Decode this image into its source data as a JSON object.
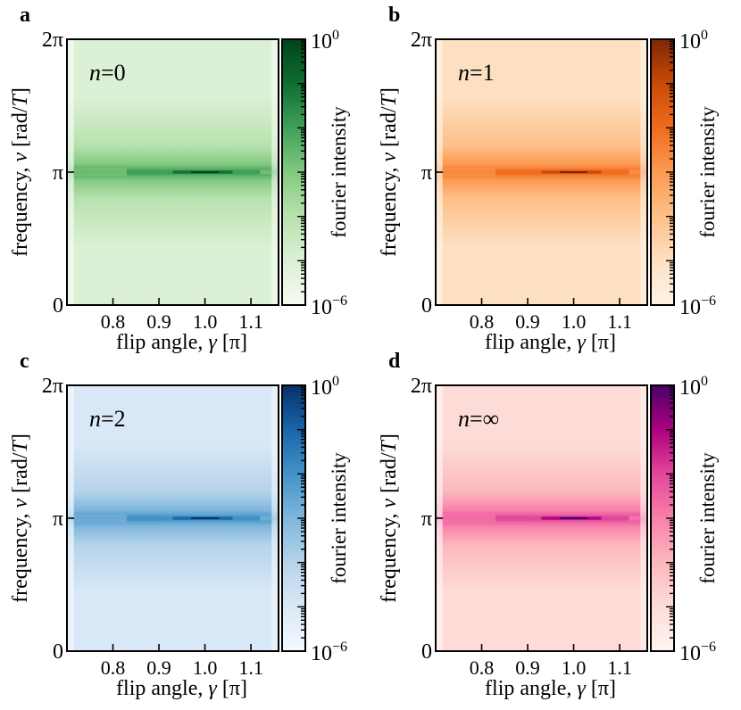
{
  "panels": [
    {
      "letter": "a",
      "annotation": "n=0",
      "n_label": "n",
      "n_value": "0",
      "colormap": [
        "#f6fbf3",
        "#dcf0d5",
        "#b7e2ae",
        "#83c97f",
        "#3fa05a",
        "#0f6e31",
        "#00441b"
      ]
    },
    {
      "letter": "b",
      "annotation": "n=1",
      "n_label": "n",
      "n_value": "1",
      "colormap": [
        "#fff3e6",
        "#fde0c2",
        "#fdc08a",
        "#fb9a52",
        "#ef6c1e",
        "#c94a07",
        "#7f2704"
      ]
    },
    {
      "letter": "c",
      "annotation": "n=2",
      "n_label": "n",
      "n_value": "2",
      "colormap": [
        "#f4f9fe",
        "#d9e8f6",
        "#b5d3ea",
        "#7fb6dc",
        "#4392c6",
        "#1965aa",
        "#08306b"
      ]
    },
    {
      "letter": "d",
      "annotation": "n=∞",
      "n_label": "n",
      "n_value": "∞",
      "colormap": [
        "#fff4f1",
        "#fddcd8",
        "#fbb8bd",
        "#f881aa",
        "#e2469c",
        "#ac017e",
        "#49006a"
      ]
    }
  ],
  "axes": {
    "xlabel": "flip angle, γ [π]",
    "xlabel_parts": {
      "main": "flip angle, ",
      "symbol": "γ",
      "unit": " [π]"
    },
    "ylabel": "frequency, ν [rad/T]",
    "ylabel_parts": {
      "main": "frequency, ",
      "symbol": "ν",
      "unit_open": " [rad/",
      "unit_sym": "T",
      "unit_close": "]"
    },
    "xticks": [
      "0.8",
      "0.9",
      "1.0",
      "1.1"
    ],
    "yticks": [
      "0",
      "π",
      "2π"
    ],
    "colorbar_label": "fourier intensity",
    "colorbar_top": {
      "base": "10",
      "exp": "0"
    },
    "colorbar_bottom": {
      "base": "10",
      "exp": "−6"
    }
  },
  "chart_data": [
    {
      "panel": "a",
      "type": "heatmap",
      "title": "",
      "n": "0",
      "xlabel": "flip angle, γ [π]",
      "ylabel": "frequency, ν [rad/T]",
      "xlim": [
        0.7,
        1.16
      ],
      "ylim": [
        0,
        6.2832
      ],
      "x_ticks": [
        0.8,
        0.9,
        1.0,
        1.1
      ],
      "y_ticks": [
        "0",
        "π",
        "2π"
      ],
      "colorbar": {
        "label": "fourier intensity",
        "scale": "log",
        "range": [
          1e-06,
          1
        ]
      },
      "peak": {
        "frequency": "π",
        "x_range": [
          0.7,
          1.14
        ],
        "max_at": 1.0,
        "max_intensity": 1.0
      },
      "background_intensity": 1e-05
    },
    {
      "panel": "b",
      "type": "heatmap",
      "title": "",
      "n": "1",
      "xlabel": "flip angle, γ [π]",
      "ylabel": "frequency, ν [rad/T]",
      "xlim": [
        0.7,
        1.16
      ],
      "ylim": [
        0,
        6.2832
      ],
      "x_ticks": [
        0.8,
        0.9,
        1.0,
        1.1
      ],
      "y_ticks": [
        "0",
        "π",
        "2π"
      ],
      "colorbar": {
        "label": "fourier intensity",
        "scale": "log",
        "range": [
          1e-06,
          1
        ]
      },
      "peak": {
        "frequency": "π",
        "x_range": [
          0.7,
          1.14
        ],
        "max_at": 0.98,
        "max_intensity": 1.0
      },
      "background_intensity": 1e-05
    },
    {
      "panel": "c",
      "type": "heatmap",
      "title": "",
      "n": "2",
      "xlabel": "flip angle, γ [π]",
      "ylabel": "frequency, ν [rad/T]",
      "xlim": [
        0.7,
        1.16
      ],
      "ylim": [
        0,
        6.2832
      ],
      "x_ticks": [
        0.8,
        0.9,
        1.0,
        1.1
      ],
      "y_ticks": [
        "0",
        "π",
        "2π"
      ],
      "colorbar": {
        "label": "fourier intensity",
        "scale": "log",
        "range": [
          1e-06,
          1
        ]
      },
      "peak": {
        "frequency": "π",
        "x_range": [
          0.7,
          1.14
        ],
        "max_at": 1.0,
        "max_intensity": 1.0
      },
      "background_intensity": 1e-05
    },
    {
      "panel": "d",
      "type": "heatmap",
      "title": "",
      "n": "∞",
      "xlabel": "flip angle, γ [π]",
      "ylabel": "frequency, ν [rad/T]",
      "xlim": [
        0.7,
        1.16
      ],
      "ylim": [
        0,
        6.2832
      ],
      "x_ticks": [
        0.8,
        0.9,
        1.0,
        1.1
      ],
      "y_ticks": [
        "0",
        "π",
        "2π"
      ],
      "colorbar": {
        "label": "fourier intensity",
        "scale": "log",
        "range": [
          1e-06,
          1
        ]
      },
      "peak": {
        "frequency": "π",
        "x_range": [
          0.7,
          1.14
        ],
        "max_at": 0.98,
        "max_intensity": 1.0
      },
      "background_intensity": 1e-05
    }
  ]
}
